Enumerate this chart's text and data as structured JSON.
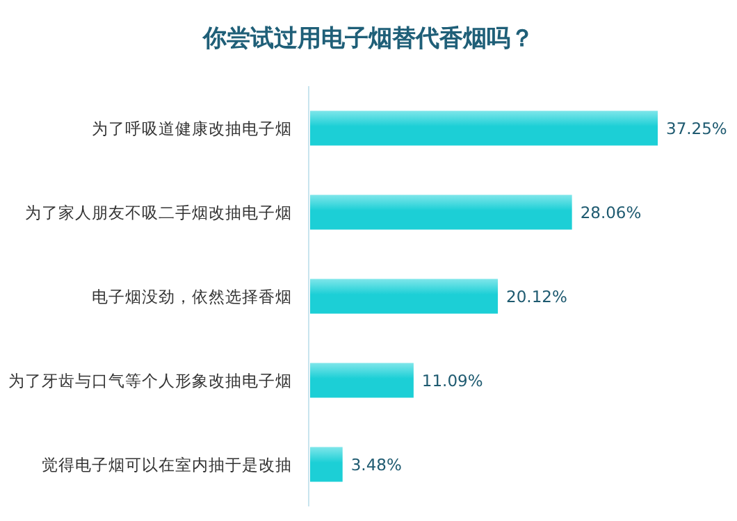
{
  "chart_data": {
    "type": "bar",
    "orientation": "horizontal",
    "title": "你尝试过用电子烟替代香烟吗？",
    "categories": [
      "为了呼吸道健康改抽电子烟",
      "为了家人朋友不吸二手烟改抽电子烟",
      "电子烟没劲，依然选择香烟",
      "为了牙齿与口气等个人形象改抽电子烟",
      "觉得电子烟可以在室内抽于是改抽"
    ],
    "values": [
      37.25,
      28.06,
      20.12,
      11.09,
      3.48
    ],
    "value_labels": [
      "37.25%",
      "28.06%",
      "20.12%",
      "11.09%",
      "3.48%"
    ],
    "color": "#1ccfd6"
  }
}
